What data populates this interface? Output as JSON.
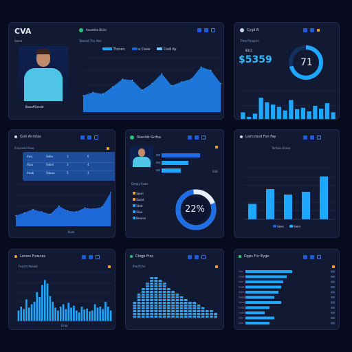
{
  "colors": {
    "bg": "#080b1e",
    "panel": "#121a33",
    "accent": "#1ea7ff",
    "accent2": "#1e5bd6",
    "warn": "#f0a32a"
  },
  "p1": {
    "title": "CVA",
    "tab_label": "Ananttiin Boins",
    "sub_label": "Sonst",
    "chart_heading": "Tawsed Tnn Hen",
    "legend": [
      "Thinen",
      "o Cove",
      "Codi Ky"
    ],
    "player_caption": "Bazo#Snseld",
    "chart_data": {
      "type": "area",
      "values": [
        30,
        36,
        33,
        46,
        60,
        58,
        40,
        52,
        70,
        48,
        55,
        60,
        82,
        76,
        52
      ]
    }
  },
  "p2": {
    "title": "Cygil B",
    "sub_label": "Thee Prpopris",
    "small_value": "8311",
    "big_value": "$5359",
    "donut_value": "71",
    "chart_data": {
      "type": "bar",
      "values": [
        48,
        38,
        45,
        80,
        70,
        65,
        60,
        52,
        75,
        55,
        58,
        50,
        62,
        56,
        68,
        48
      ]
    }
  },
  "p3": {
    "title": "Goit Anrstas",
    "sub_label": "Frecesnd Faae",
    "table_rows": [
      [
        "Aaq",
        "Sebu",
        "3",
        "6"
      ],
      [
        "Atoo",
        "Sebnl",
        "3",
        "4"
      ],
      [
        "Anab",
        "Sepuu",
        "5",
        "3"
      ]
    ],
    "xlabel": "Kulw",
    "chart_data": {
      "type": "area",
      "values": [
        22,
        28,
        35,
        30,
        25,
        42,
        32,
        30,
        38,
        36,
        40,
        70
      ]
    }
  },
  "p4": {
    "title": "Stanlist Grifsa",
    "bar_value": "528",
    "list_title": "Deepy Fodd",
    "list_items": [
      "Spurl",
      "Sostd",
      "Stnd",
      "Stoe",
      "Boorce"
    ],
    "donut_value": "22%",
    "chart_data": {
      "type": "bar",
      "values": [
        80,
        56,
        40
      ]
    }
  },
  "p5": {
    "title": "Lwrcclssd Fon Fay",
    "chart_heading": "Tertoes Essee",
    "legend": [
      "Ssen",
      "Siern"
    ],
    "chart_data": {
      "type": "bar",
      "values": [
        28,
        55,
        45,
        50,
        78
      ],
      "ylim": [
        0,
        100
      ]
    }
  },
  "p6": {
    "title": "Lorsos Fiowces",
    "sub_label": "Fooset Pooost",
    "xlabel": "Ecap",
    "chart_data": {
      "type": "bar",
      "values": [
        22,
        30,
        25,
        45,
        28,
        35,
        40,
        60,
        50,
        75,
        85,
        78,
        52,
        40,
        28,
        22,
        30,
        35,
        25,
        38,
        28,
        32,
        22,
        18,
        30,
        24,
        26,
        20,
        22,
        35,
        28,
        30,
        25,
        40,
        30,
        22
      ]
    }
  },
  "p7": {
    "title": "Cbigp Froc",
    "sub_label": "Proofcms",
    "chart_data": {
      "type": "bar",
      "values": [
        30,
        48,
        62,
        70,
        82,
        80,
        76,
        70,
        60,
        55,
        50,
        45,
        38,
        34,
        30,
        26,
        22,
        18,
        14,
        10
      ]
    }
  },
  "p8": {
    "title": "Dpps Fnr Eyge",
    "rows": [
      "Coc",
      "Ceeo",
      "Ctel",
      "Eoee",
      "Wsel",
      "Geho",
      "Geho",
      "Coes",
      "Cosd",
      "Ctnl",
      "Ceh"
    ],
    "chart_data": {
      "type": "bar",
      "orientation": "horizontal",
      "values": [
        68,
        60,
        55,
        52,
        48,
        42,
        52,
        35,
        28,
        42,
        35
      ],
      "xlim": [
        0,
        100
      ]
    }
  }
}
